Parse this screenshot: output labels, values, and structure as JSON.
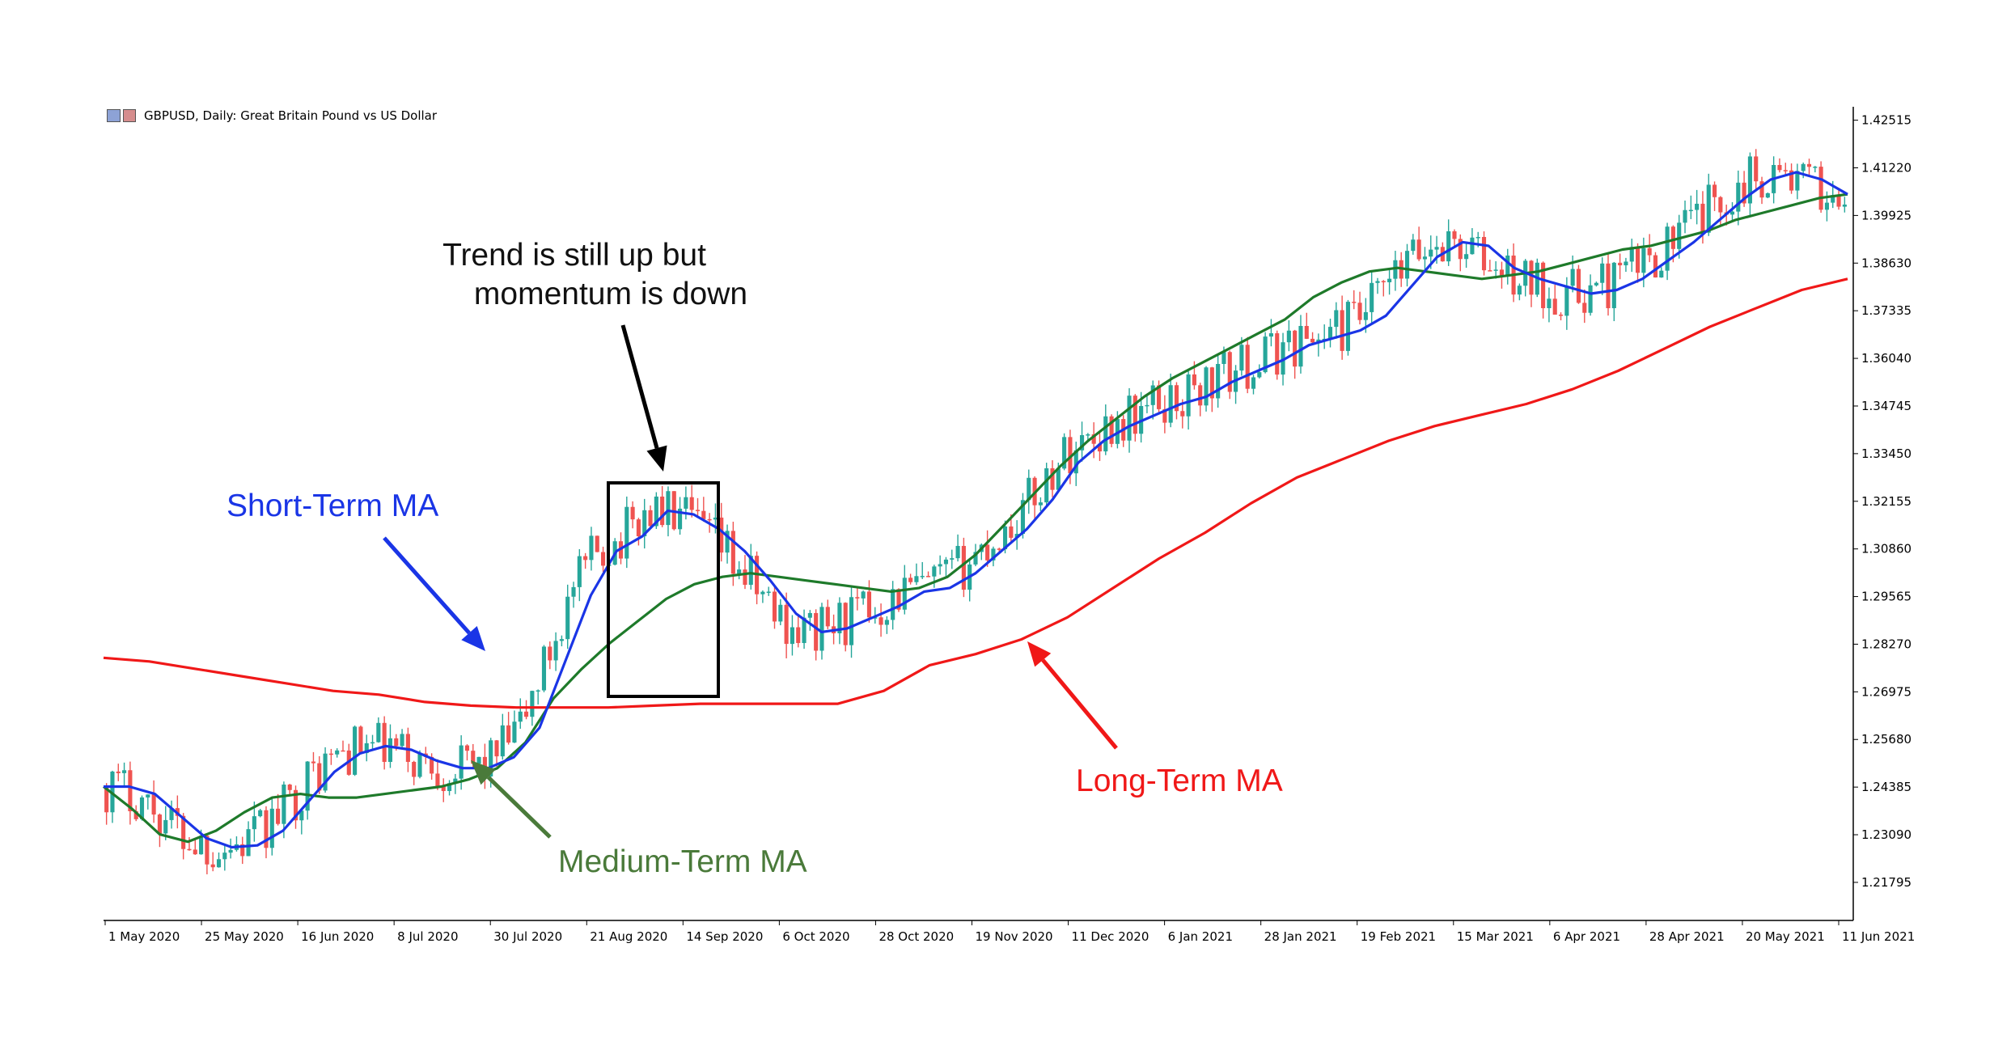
{
  "header": {
    "title": "GBPUSD, Daily:  Great Britain Pound vs US Dollar"
  },
  "colors": {
    "bull_candle": "#26a69a",
    "bear_candle": "#ef5350",
    "short_ma": "#1a35e6",
    "medium_ma": "#1e7a2a",
    "long_ma": "#f01818",
    "box": "#000000",
    "medium_label": "#4a7a3a"
  },
  "chart_data": {
    "type": "line",
    "chart_kind": "candlestick with moving averages",
    "y_ticks": [
      "1.42515",
      "1.41220",
      "1.39925",
      "1.38630",
      "1.37335",
      "1.36040",
      "1.34745",
      "1.33450",
      "1.32155",
      "1.30860",
      "1.29565",
      "1.28270",
      "1.26975",
      "1.25680",
      "1.24385",
      "1.23090",
      "1.21795"
    ],
    "ylim": [
      1.2076,
      1.4288
    ],
    "x_ticks": [
      "1 May 2020",
      "25 May 2020",
      "16 Jun 2020",
      "8 Jul 2020",
      "30 Jul 2020",
      "21 Aug 2020",
      "14 Sep 2020",
      "6 Oct 2020",
      "28 Oct 2020",
      "19 Nov 2020",
      "11 Dec 2020",
      "6 Jan 2021",
      "28 Jan 2021",
      "19 Feb 2021",
      "15 Mar 2021",
      "6 Apr 2021",
      "28 Apr 2021",
      "20 May 2021",
      "11 Jun 2021"
    ],
    "series": [
      {
        "role": "short",
        "values": [
          1.244,
          1.244,
          1.242,
          1.236,
          1.23,
          1.2275,
          1.228,
          1.232,
          1.24,
          1.248,
          1.253,
          1.255,
          1.254,
          1.251,
          1.249,
          1.249,
          1.252,
          1.26,
          1.278,
          1.296,
          1.308,
          1.312,
          1.319,
          1.318,
          1.314,
          1.308,
          1.3,
          1.291,
          1.286,
          1.287,
          1.29,
          1.293,
          1.297,
          1.298,
          1.302,
          1.308,
          1.314,
          1.322,
          1.332,
          1.338,
          1.342,
          1.345,
          1.348,
          1.35,
          1.354,
          1.357,
          1.36,
          1.364,
          1.366,
          1.368,
          1.372,
          1.38,
          1.388,
          1.392,
          1.391,
          1.385,
          1.382,
          1.38,
          1.378,
          1.379,
          1.382,
          1.387,
          1.392,
          1.398,
          1.404,
          1.409,
          1.411,
          1.409,
          1.405
        ]
      },
      {
        "role": "medium",
        "values": [
          1.244,
          1.238,
          1.231,
          1.229,
          1.232,
          1.237,
          1.241,
          1.242,
          1.241,
          1.241,
          1.242,
          1.243,
          1.244,
          1.246,
          1.249,
          1.256,
          1.268,
          1.276,
          1.283,
          1.289,
          1.295,
          1.299,
          1.301,
          1.302,
          1.301,
          1.3,
          1.299,
          1.298,
          1.297,
          1.298,
          1.301,
          1.307,
          1.315,
          1.323,
          1.331,
          1.338,
          1.344,
          1.35,
          1.355,
          1.359,
          1.363,
          1.367,
          1.371,
          1.377,
          1.381,
          1.384,
          1.385,
          1.384,
          1.383,
          1.382,
          1.383,
          1.384,
          1.386,
          1.388,
          1.39,
          1.391,
          1.393,
          1.395,
          1.398,
          1.4,
          1.402,
          1.404,
          1.405
        ]
      },
      {
        "role": "long",
        "values": [
          1.279,
          1.278,
          1.276,
          1.274,
          1.272,
          1.27,
          1.269,
          1.267,
          1.266,
          1.2655,
          1.2655,
          1.2655,
          1.266,
          1.2665,
          1.2665,
          1.2665,
          1.2665,
          1.27,
          1.277,
          1.28,
          1.284,
          1.29,
          1.298,
          1.306,
          1.313,
          1.321,
          1.328,
          1.333,
          1.338,
          1.342,
          1.345,
          1.348,
          1.352,
          1.357,
          1.363,
          1.369,
          1.374,
          1.379,
          1.382
        ]
      }
    ]
  },
  "annotations": {
    "trend_note_line1": "Trend is still up but",
    "trend_note_line2": "momentum is down",
    "short_label": "Short-Term MA",
    "medium_label": "Medium-Term MA",
    "long_label": "Long-Term MA"
  }
}
